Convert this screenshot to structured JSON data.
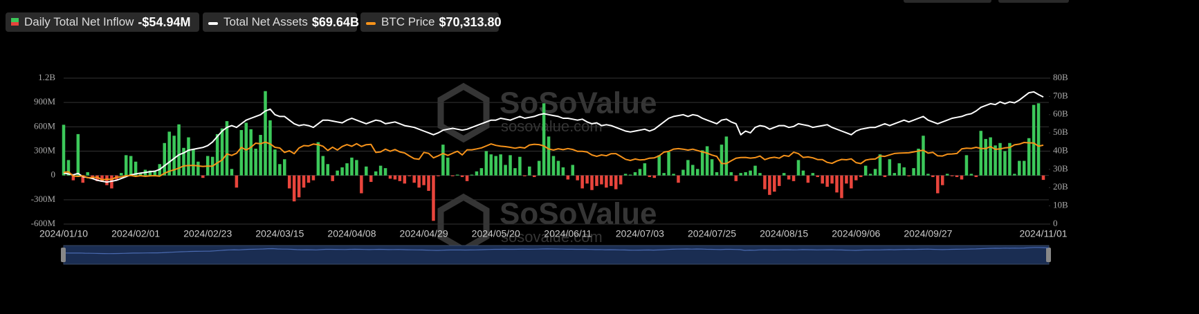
{
  "chart_data": {
    "type": "bar",
    "ylim": [
      -600,
      1200
    ],
    "yticks": [
      {
        "value": -600,
        "label": "-600M"
      },
      {
        "value": -300,
        "label": "-300M"
      },
      0,
      {
        "value": 300,
        "label": "300M"
      },
      {
        "value": 600,
        "label": "600M"
      },
      {
        "value": 900,
        "label": "900M"
      },
      {
        "value": 1200,
        "label": "1.2B"
      }
    ],
    "y2lim": [
      0,
      80
    ],
    "y2ticks": [
      0,
      {
        "value": 10,
        "label": "10B"
      },
      {
        "value": 20,
        "label": "20B"
      },
      {
        "value": 30,
        "label": "30B"
      },
      {
        "value": 40,
        "label": "40B"
      },
      {
        "value": 50,
        "label": "50B"
      },
      {
        "value": 60,
        "label": "60B"
      },
      {
        "value": 70,
        "label": "70B"
      },
      {
        "value": 80,
        "label": "80B"
      }
    ],
    "y3lim": [
      0,
      130000
    ],
    "grid": true,
    "watermark": {
      "brand": "SoSoValue",
      "site": "sosovalue.com"
    },
    "categories": [
      "2024/01/10",
      null,
      null,
      null,
      null,
      null,
      null,
      null,
      null,
      null,
      null,
      null,
      null,
      null,
      null,
      "2024/02/01",
      null,
      null,
      null,
      null,
      null,
      null,
      null,
      null,
      null,
      null,
      null,
      null,
      null,
      null,
      "2024/02/23",
      null,
      null,
      null,
      null,
      null,
      null,
      null,
      null,
      null,
      null,
      null,
      null,
      null,
      null,
      "2024/03/15",
      null,
      null,
      null,
      null,
      null,
      null,
      null,
      null,
      null,
      null,
      null,
      null,
      null,
      null,
      "2024/04/08",
      null,
      null,
      null,
      null,
      null,
      null,
      null,
      null,
      null,
      null,
      null,
      null,
      null,
      null,
      "2024/04/29",
      null,
      null,
      null,
      null,
      null,
      null,
      null,
      null,
      null,
      null,
      null,
      null,
      null,
      null,
      "2024/05/20",
      null,
      null,
      null,
      null,
      null,
      null,
      null,
      null,
      null,
      null,
      null,
      null,
      null,
      null,
      "2024/06/11",
      null,
      null,
      null,
      null,
      null,
      null,
      null,
      null,
      null,
      null,
      null,
      null,
      null,
      null,
      "2024/07/03",
      null,
      null,
      null,
      null,
      null,
      null,
      null,
      null,
      null,
      null,
      null,
      null,
      null,
      null,
      "2024/07/25",
      null,
      null,
      null,
      null,
      null,
      null,
      null,
      null,
      null,
      null,
      null,
      null,
      null,
      null,
      "2024/08/15",
      null,
      null,
      null,
      null,
      null,
      null,
      null,
      null,
      null,
      null,
      null,
      null,
      null,
      null,
      "2024/09/06",
      null,
      null,
      null,
      null,
      null,
      null,
      null,
      null,
      null,
      null,
      null,
      null,
      null,
      null,
      "2024/09/27",
      null,
      null,
      null,
      null,
      null,
      null,
      null,
      null,
      null,
      null,
      null,
      null,
      null,
      null,
      null,
      null,
      null,
      null,
      null,
      null,
      null,
      null,
      null,
      "2024/11/01"
    ],
    "series": [
      {
        "name": "Daily Total Net Inflow",
        "type": "bar",
        "color": "#3cc85a",
        "negative_color": "#e8453c",
        "latest_label": "-$54.94M",
        "values": [
          625,
          190,
          -60,
          510,
          -90,
          40,
          -40,
          -70,
          -80,
          -120,
          -160,
          -50,
          30,
          250,
          240,
          170,
          30,
          70,
          60,
          50,
          140,
          400,
          540,
          490,
          630,
          340,
          470,
          330,
          170,
          -30,
          240,
          230,
          510,
          580,
          670,
          80,
          -150,
          560,
          650,
          570,
          330,
          500,
          1040,
          680,
          320,
          140,
          200,
          -160,
          -320,
          -270,
          -150,
          -90,
          -60,
          410,
          240,
          140,
          -70,
          60,
          100,
          150,
          220,
          190,
          -220,
          110,
          -80,
          50,
          120,
          90,
          -40,
          -50,
          -70,
          -100,
          -10,
          -90,
          -150,
          -120,
          -190,
          -560,
          -10,
          380,
          220,
          -10,
          10,
          -20,
          -70,
          10,
          50,
          90,
          300,
          260,
          240,
          260,
          130,
          250,
          90,
          230,
          -10,
          110,
          -20,
          180,
          890,
          480,
          240,
          180,
          100,
          -50,
          130,
          -60,
          -160,
          -100,
          -180,
          -130,
          -110,
          -150,
          -130,
          -170,
          -110,
          20,
          10,
          40,
          80,
          150,
          -20,
          -30,
          250,
          30,
          290,
          20,
          -90,
          70,
          190,
          130,
          80,
          310,
          360,
          200,
          40,
          380,
          480,
          40,
          -70,
          30,
          40,
          60,
          120,
          30,
          -170,
          -240,
          -200,
          -130,
          30,
          -50,
          -70,
          190,
          60,
          -90,
          30,
          -20,
          -100,
          -140,
          -100,
          -210,
          -280,
          -100,
          -160,
          -60,
          -20,
          120,
          20,
          80,
          260,
          -20,
          200,
          30,
          150,
          100,
          -10,
          90,
          330,
          490,
          20,
          -20,
          -220,
          -120,
          20,
          -10,
          -20,
          -50,
          250,
          20,
          -20,
          550,
          450,
          470,
          370,
          400,
          300,
          400,
          20,
          180,
          180,
          460,
          870,
          890,
          -54.94
        ]
      },
      {
        "name": "Total Net Assets",
        "type": "line",
        "axis": "y2",
        "color": "#ffffff",
        "latest_label": "$69.64B",
        "values": [
          28,
          27.5,
          27,
          27.8,
          26,
          25.5,
          25,
          24,
          23.5,
          23,
          23.5,
          24,
          25,
          26,
          27,
          27.5,
          28,
          28.3,
          28.7,
          29,
          30,
          32,
          34,
          36,
          38,
          39,
          40.5,
          41,
          41.5,
          42,
          43,
          45,
          48,
          51,
          53,
          54,
          53,
          55,
          57,
          58,
          59,
          60,
          62,
          63,
          60,
          59,
          59,
          57,
          55,
          54,
          54.5,
          54,
          53,
          55,
          57,
          57,
          56.5,
          56,
          55.5,
          57,
          58,
          57,
          56,
          55,
          56,
          57,
          56.5,
          55,
          55.5,
          56,
          55,
          54,
          53.5,
          53,
          52,
          51,
          50,
          49,
          50,
          51.5,
          52,
          52.5,
          52,
          51.5,
          52,
          53,
          54,
          55,
          56,
          57,
          57,
          58,
          57.5,
          57,
          58,
          59,
          58,
          58.5,
          59,
          60,
          60.5,
          60,
          59.5,
          59,
          58,
          58,
          57.5,
          57,
          57.5,
          56,
          55,
          55.5,
          54,
          54.5,
          54,
          53,
          52,
          51,
          50.5,
          51,
          51.5,
          52,
          51,
          52,
          54,
          56,
          58,
          59,
          59.5,
          60,
          59,
          60,
          59.5,
          58,
          57,
          56,
          55,
          57,
          57.5,
          56,
          55,
          49,
          51,
          50,
          53,
          54,
          53.5,
          52,
          53,
          54,
          54,
          53,
          53.5,
          55,
          54.5,
          54,
          53,
          53.5,
          54,
          54.5,
          53,
          52,
          51,
          50,
          49,
          51,
          52,
          52.5,
          53,
          53,
          54,
          55,
          54,
          55,
          56,
          57,
          56,
          57,
          58,
          59,
          57,
          56,
          55,
          56,
          57,
          58,
          58.5,
          59,
          60,
          60.5,
          62,
          64,
          65,
          66,
          65.5,
          67,
          66,
          67,
          66.5,
          68,
          70,
          72,
          72.5,
          71,
          69.64
        ]
      },
      {
        "name": "BTC Price",
        "type": "line",
        "axis": "y3",
        "color": "#f7931a",
        "latest_label": "$70,313.80",
        "values": [
          46100,
          46600,
          42800,
          42500,
          43000,
          41300,
          41600,
          41700,
          39500,
          40000,
          39900,
          41800,
          42000,
          43100,
          43300,
          42500,
          43100,
          42600,
          43000,
          43100,
          42700,
          45300,
          47100,
          48300,
          49900,
          51800,
          52100,
          52300,
          51800,
          51400,
          51700,
          51600,
          54500,
          57100,
          62500,
          61200,
          63100,
          68300,
          66000,
          68400,
          72100,
          71500,
          73100,
          71400,
          68400,
          67800,
          63800,
          65400,
          62700,
          67800,
          69900,
          69600,
          71300,
          70700,
          69400,
          65600,
          68500,
          66000,
          69100,
          70800,
          69300,
          71600,
          69100,
          70700,
          71000,
          63800,
          64300,
          66800,
          64900,
          66400,
          64300,
          63400,
          60700,
          58300,
          57700,
          63800,
          63000,
          59000,
          60800,
          62900,
          61200,
          63100,
          64900,
          61600,
          66200,
          66200,
          67000,
          67900,
          69600,
          71400,
          70100,
          69400,
          69000,
          68400,
          67600,
          68400,
          67800,
          70500,
          71100,
          70800,
          69600,
          66900,
          66000,
          67100,
          66300,
          67300,
          66500,
          64800,
          64900,
          64200,
          61600,
          60300,
          61600,
          60900,
          62700,
          62800,
          60300,
          57700,
          56700,
          58000,
          57100,
          57500,
          58700,
          59000,
          60800,
          64100,
          64800,
          66800,
          67200,
          66700,
          65900,
          66700,
          65500,
          64300,
          63200,
          61500,
          60300,
          54000,
          53900,
          56400,
          58700,
          59300,
          59400,
          58800,
          59200,
          60600,
          57400,
          58900,
          59500,
          58700,
          61100,
          60400,
          64000,
          62800,
          59400,
          59800,
          59000,
          57500,
          57400,
          55000,
          54100,
          56200,
          57600,
          57300,
          58100,
          54800,
          53900,
          57000,
          57800,
          58000,
          60700,
          60300,
          61700,
          62900,
          63200,
          63400,
          63500,
          64300,
          65100,
          65800,
          63200,
          63900,
          60800,
          60600,
          62300,
          62500,
          62900,
          67000,
          67600,
          67400,
          68400,
          67400,
          67300,
          69000,
          66600,
          67000,
          67900,
          68200,
          70600,
          71200,
          72700,
          72400,
          72300,
          69400,
          70313.8
        ]
      }
    ]
  }
}
